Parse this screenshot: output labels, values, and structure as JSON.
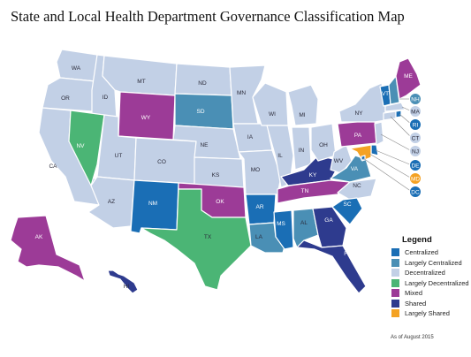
{
  "title": "State and Local Health Department Governance Classification Map",
  "footnote": "As of August 2015",
  "legend": {
    "title": "Legend",
    "items": [
      {
        "label": "Centralized",
        "color": "#1a6eb5"
      },
      {
        "label": "Largely Centralized",
        "color": "#4a8fb5"
      },
      {
        "label": "Decentralized",
        "color": "#c2d0e6"
      },
      {
        "label": "Largely Decentralized",
        "color": "#4bb575"
      },
      {
        "label": "Mixed",
        "color": "#9c3b97"
      },
      {
        "label": "Shared",
        "color": "#2e3b8e"
      },
      {
        "label": "Largely Shared",
        "color": "#f4a223"
      }
    ]
  },
  "states": {
    "WA": "Decentralized",
    "OR": "Decentralized",
    "CA": "Decentralized",
    "ID": "Decentralized",
    "NV": "Largely Decentralized",
    "MT": "Decentralized",
    "WY": "Mixed",
    "UT": "Decentralized",
    "AZ": "Decentralized",
    "CO": "Decentralized",
    "NM": "Centralized",
    "ND": "Decentralized",
    "SD": "Largely Centralized",
    "NE": "Decentralized",
    "KS": "Decentralized",
    "OK": "Mixed",
    "TX": "Largely Decentralized",
    "MN": "Decentralized",
    "IA": "Decentralized",
    "MO": "Decentralized",
    "AR": "Centralized",
    "LA": "Largely Centralized",
    "WI": "Decentralized",
    "IL": "Decentralized",
    "MS": "Centralized",
    "MI": "Decentralized",
    "IN": "Decentralized",
    "KY": "Shared",
    "TN": "Mixed",
    "AL": "Largely Centralized",
    "GA": "Shared",
    "FL": "Shared",
    "OH": "Decentralized",
    "WV": "Decentralized",
    "VA": "Largely Centralized",
    "NC": "Decentralized",
    "SC": "Centralized",
    "PA": "Mixed",
    "NY": "Decentralized",
    "VT": "Centralized",
    "NH": "Largely Centralized",
    "ME": "Mixed",
    "MA": "Decentralized",
    "RI": "Centralized",
    "CT": "Decentralized",
    "NJ": "Decentralized",
    "DE": "Centralized",
    "MD": "Largely Shared",
    "DC": "Centralized",
    "AK": "Mixed",
    "HI": "Shared"
  }
}
